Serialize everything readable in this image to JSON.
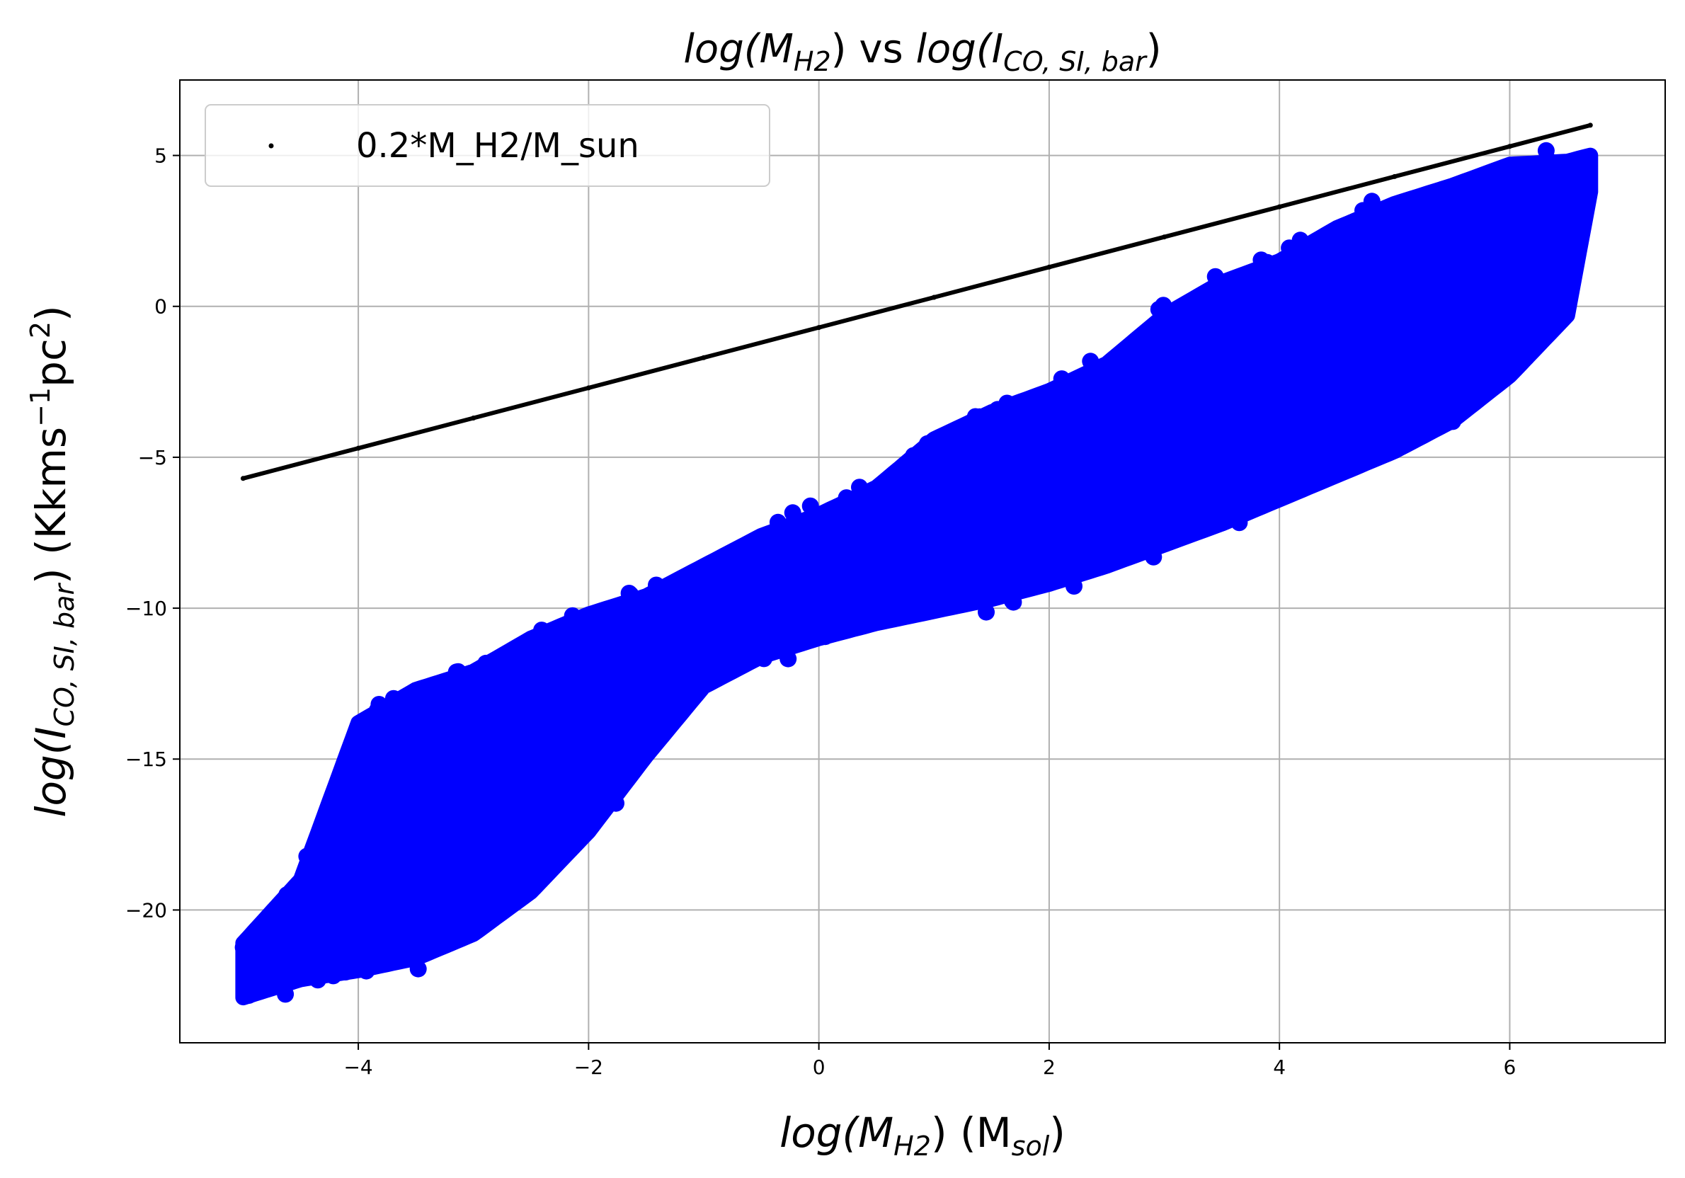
{
  "chart_data": {
    "type": "scatter",
    "title": {
      "base1": "log(M",
      "sub1": "H2",
      "mid": ") vs ",
      "base2": "log(I",
      "sub2": "CO, SI, bar",
      "end": ")"
    },
    "xlabel": {
      "base1": "log(M",
      "sub1": "H2",
      "mid": ") (M",
      "sub2": "sol",
      "end": ")"
    },
    "ylabel": {
      "base1": "log(I",
      "sub1": "CO, SI, bar",
      "mid": ") (Kkms",
      "sup1": "−1",
      "mid2": "pc",
      "sup2": "2",
      "end": ")"
    },
    "xlim": [
      -5.55,
      7.35
    ],
    "ylim": [
      -24.4,
      7.5
    ],
    "x_ticks": [
      -4,
      -2,
      0,
      2,
      4,
      6
    ],
    "x_tick_labels": [
      "−4",
      "−2",
      "0",
      "2",
      "4",
      "6"
    ],
    "y_ticks": [
      5,
      0,
      -5,
      -10,
      -15,
      -20
    ],
    "y_tick_labels": [
      "5",
      "0",
      "−5",
      "−10",
      "−15",
      "−20"
    ],
    "grid": true,
    "legend": {
      "placement": "top-left",
      "entries": [
        "0.2*M_H2/M_sun"
      ]
    },
    "series": [
      {
        "name": "0.2*M_H2/M_sun",
        "kind": "line-of-points",
        "color": "#000000",
        "x": [
          -5.0,
          -4.0,
          -3.0,
          -2.0,
          -1.0,
          0.0,
          1.0,
          2.0,
          3.0,
          4.0,
          5.0,
          6.0,
          6.7
        ],
        "y": [
          -5.7,
          -4.7,
          -3.7,
          -2.7,
          -1.7,
          -0.7,
          0.3,
          1.3,
          2.3,
          3.3,
          4.3,
          5.3,
          6.0
        ]
      },
      {
        "kind": "scatter-band",
        "color": "#0000ff",
        "x": [
          -5.0,
          -4.5,
          -4.0,
          -3.5,
          -3.0,
          -2.5,
          -2.0,
          -1.5,
          -1.0,
          -0.5,
          0.0,
          0.5,
          1.0,
          1.5,
          2.0,
          2.5,
          3.0,
          3.5,
          4.0,
          4.5,
          5.0,
          5.5,
          6.0,
          6.5,
          6.7
        ],
        "y_low": [
          -22.9,
          -22.3,
          -22.0,
          -21.6,
          -20.8,
          -19.4,
          -17.4,
          -14.9,
          -12.6,
          -11.6,
          -11.0,
          -10.5,
          -10.1,
          -9.7,
          -9.2,
          -8.6,
          -7.9,
          -7.2,
          -6.4,
          -5.6,
          -4.8,
          -3.8,
          -2.3,
          -0.3,
          3.8
        ],
        "y_high": [
          -21.1,
          -19.0,
          -13.8,
          -12.7,
          -12.1,
          -11.0,
          -10.2,
          -9.6,
          -8.6,
          -7.6,
          -6.9,
          -6.0,
          -4.4,
          -3.5,
          -2.8,
          -1.9,
          -0.3,
          0.8,
          1.5,
          2.6,
          3.4,
          4.0,
          4.7,
          4.8,
          5.0
        ]
      }
    ]
  }
}
